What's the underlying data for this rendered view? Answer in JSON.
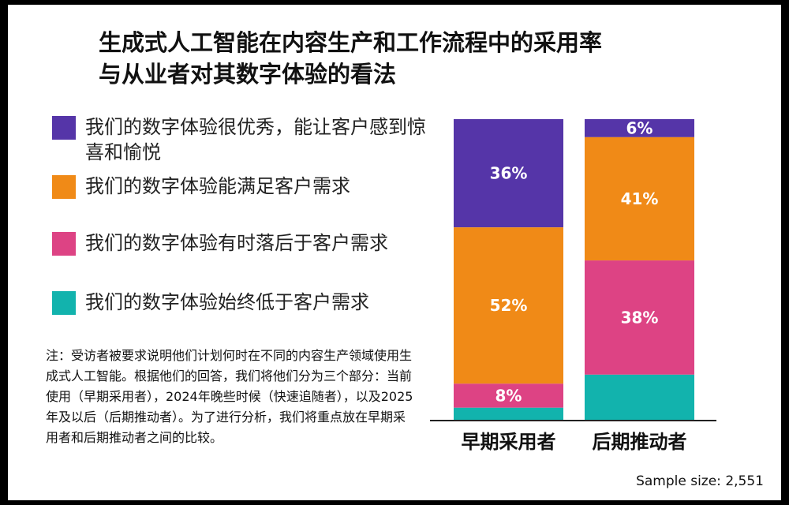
{
  "title_lines": [
    "生成式人工智能在内容生产和工作流程中的采用率",
    "与从业者对其数字体验的看法"
  ],
  "note": "注：受访者被要求说明他们计划何时在不同的内容生产领域使用生成式人工智能。根据他们的回答，我们将他们分为三个部分：当前使用（早期采用者），2024年晚些时候（快速追随者），以及2025年及以后（后期推动者）。为了进行分析，我们将重点放在早期采用者和后期推动者之间的比较。",
  "sample_size": "Sample size: 2,551",
  "chart_data": {
    "type": "bar",
    "stacked": true,
    "orientation": "vertical",
    "title": "生成式人工智能在内容生产和工作流程中的采用率与从业者对其数字体验的看法",
    "categories": [
      "早期采用者",
      "后期推动者"
    ],
    "ylim": [
      0,
      100
    ],
    "grid": false,
    "legend_position": "left",
    "series": [
      {
        "name": "我们的数字体验很优秀，能让客户感到惊喜和愉悦",
        "color": "#5535a8",
        "values": [
          36,
          6
        ],
        "labels": [
          "36%",
          "6%"
        ]
      },
      {
        "name": "我们的数字体验能满足客户需求",
        "color": "#f08a17",
        "values": [
          52,
          41
        ],
        "labels": [
          "52%",
          "41%"
        ]
      },
      {
        "name": "我们的数字体验有时落后于客户需求",
        "color": "#dd4384",
        "values": [
          8,
          38
        ],
        "labels": [
          "8%",
          "38%"
        ]
      },
      {
        "name": "我们的数字体验始终低于客户需求",
        "color": "#12b3ad",
        "values": [
          4,
          15
        ],
        "labels": [
          "",
          ""
        ]
      }
    ]
  }
}
